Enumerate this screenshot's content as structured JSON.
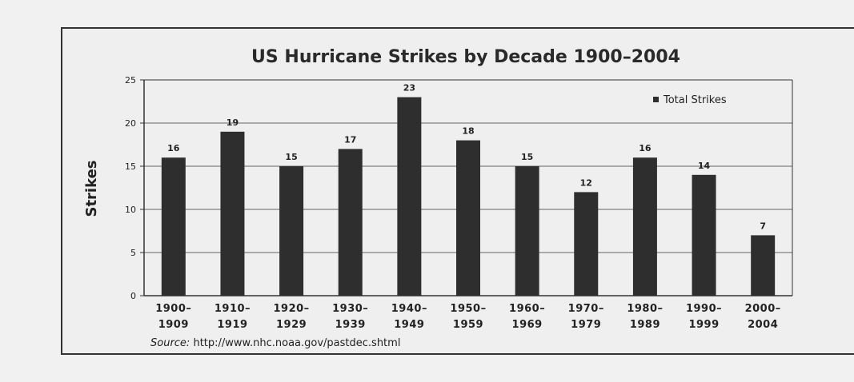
{
  "chart_data": {
    "type": "bar",
    "title": "US Hurricane Strikes by Decade 1900–2004",
    "ylabel": "Strikes",
    "xlabel": "",
    "categories": [
      [
        "1900–",
        "1909"
      ],
      [
        "1910–",
        "1919"
      ],
      [
        "1920–",
        "1929"
      ],
      [
        "1930–",
        "1939"
      ],
      [
        "1940–",
        "1949"
      ],
      [
        "1950–",
        "1959"
      ],
      [
        "1960–",
        "1969"
      ],
      [
        "1970–",
        "1979"
      ],
      [
        "1980–",
        "1989"
      ],
      [
        "1990–",
        "1999"
      ],
      [
        "2000–",
        "2004"
      ]
    ],
    "series": [
      {
        "name": "Total Strikes",
        "values": [
          16,
          19,
          15,
          17,
          23,
          18,
          15,
          12,
          16,
          14,
          7
        ],
        "color": "#2e2e2e"
      }
    ],
    "ylim": [
      0,
      25
    ],
    "yticks": [
      0,
      5,
      10,
      15,
      20,
      25
    ],
    "grid": true,
    "legend": "top-right",
    "data_labels": true
  },
  "source": {
    "prefix": "Source:",
    "text": "http://www.nhc.noaa.gov/pastdec.shtml"
  },
  "colors": {
    "bar": "#2e2e2e",
    "grid": "#666666",
    "background": "#efefef"
  }
}
